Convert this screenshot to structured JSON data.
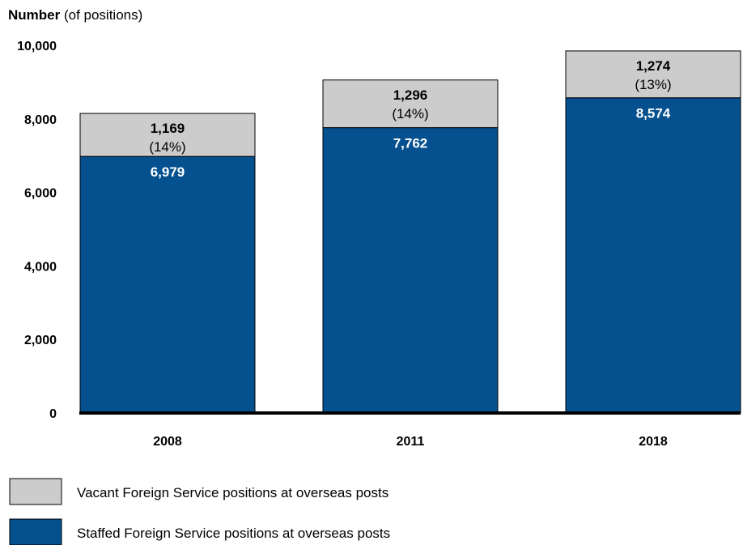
{
  "chart_data": {
    "type": "bar",
    "stacked": true,
    "ylabel_bold": "Number",
    "ylabel_rest": " (of positions)",
    "ylim": [
      0,
      10000
    ],
    "yticks": [
      "0",
      "2,000",
      "4,000",
      "6,000",
      "8,000",
      "10,000"
    ],
    "ytick_values": [
      0,
      2000,
      4000,
      6000,
      8000,
      10000
    ],
    "categories": [
      "2008",
      "2011",
      "2018"
    ],
    "series": [
      {
        "name": "Staffed Foreign Service positions at overseas posts",
        "color": "#05508f",
        "values": [
          6979,
          7762,
          8574
        ],
        "labels": [
          "6,979",
          "7,762",
          "8,574"
        ]
      },
      {
        "name": "Vacant Foreign Service positions at overseas posts",
        "color": "#cccccc",
        "values": [
          1169,
          1296,
          1274
        ],
        "labels": [
          "1,169",
          "1,296",
          "1,274"
        ],
        "percent_labels": [
          "(14%)",
          "(14%)",
          "(13%)"
        ]
      }
    ],
    "legend": [
      {
        "label": "Vacant Foreign Service positions at overseas posts",
        "color": "#cccccc"
      },
      {
        "label": "Staffed Foreign Service positions at overseas posts",
        "color": "#05508f"
      }
    ]
  }
}
